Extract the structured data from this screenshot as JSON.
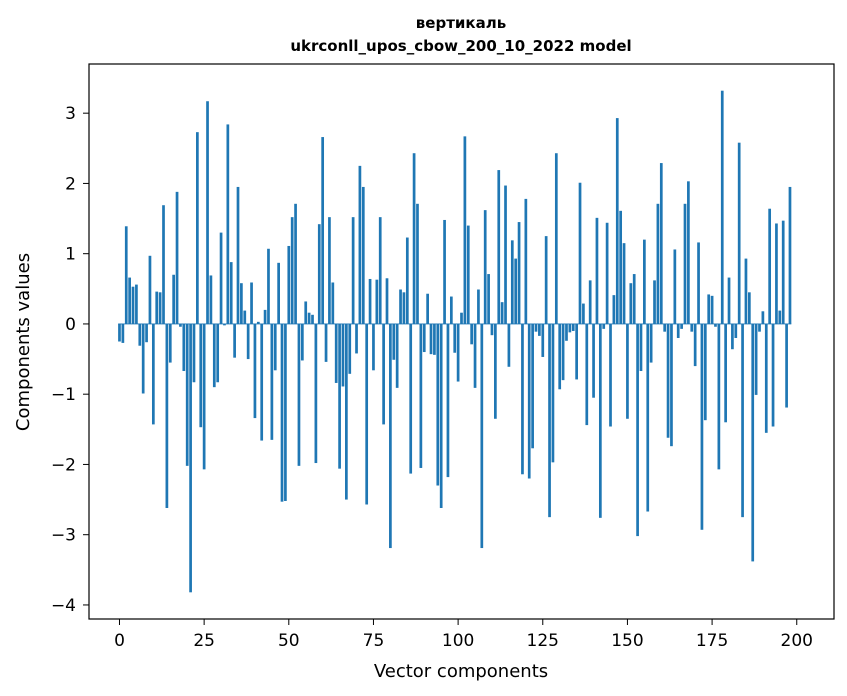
{
  "chart_data": {
    "type": "bar",
    "title_line1": "вертикаль",
    "title_line2": "ukrconll_upos_cbow_200_10_2022 model",
    "xlabel": "Vector components",
    "ylabel": "Components values",
    "xlim": [
      -9,
      211
    ],
    "ylim": [
      -4.2,
      3.7
    ],
    "xticks": [
      0,
      25,
      50,
      75,
      100,
      125,
      150,
      175,
      200
    ],
    "yticks": [
      -4,
      -3,
      -2,
      -1,
      0,
      1,
      2,
      3
    ],
    "ytick_labels": [
      "−4",
      "−3",
      "−2",
      "−1",
      "0",
      "1",
      "2",
      "3"
    ],
    "bar_color": "#1f77b4",
    "grid": false,
    "values": [
      -0.25,
      -0.27,
      1.39,
      0.66,
      0.53,
      0.56,
      -0.31,
      -0.99,
      -0.26,
      0.97,
      -1.43,
      0.46,
      0.45,
      1.69,
      -2.62,
      -0.55,
      0.7,
      1.88,
      -0.04,
      -0.67,
      -2.02,
      -3.82,
      -0.83,
      2.73,
      -1.47,
      -2.07,
      3.17,
      0.69,
      -0.9,
      -0.83,
      1.3,
      -0.02,
      2.84,
      0.88,
      -0.48,
      1.95,
      0.58,
      0.19,
      -0.5,
      0.59,
      -1.34,
      0.03,
      -1.66,
      0.2,
      1.07,
      -1.65,
      -0.66,
      0.87,
      -2.53,
      -2.52,
      1.11,
      1.52,
      1.71,
      -2.02,
      -0.52,
      0.32,
      0.16,
      0.13,
      -1.98,
      1.42,
      2.66,
      -0.54,
      1.52,
      0.59,
      -0.84,
      -2.06,
      -0.89,
      -2.5,
      -0.71,
      1.52,
      -0.42,
      2.25,
      1.95,
      -2.57,
      0.64,
      -0.66,
      0.63,
      1.52,
      -1.43,
      0.65,
      -3.19,
      -0.51,
      -0.91,
      0.49,
      0.45,
      1.23,
      -2.13,
      2.43,
      1.71,
      -2.05,
      -0.4,
      0.43,
      -0.43,
      -0.44,
      -2.3,
      -2.62,
      1.48,
      -2.18,
      0.39,
      -0.41,
      -0.82,
      0.16,
      2.67,
      1.4,
      -0.29,
      -0.91,
      0.49,
      -3.19,
      1.62,
      0.71,
      -0.16,
      -1.35,
      2.19,
      0.31,
      1.97,
      -0.61,
      1.19,
      0.93,
      1.45,
      -2.14,
      1.78,
      -2.2,
      -1.77,
      -0.11,
      -0.17,
      -0.47,
      1.25,
      -2.75,
      -1.97,
      2.43,
      -0.93,
      -0.8,
      -0.24,
      -0.12,
      -0.1,
      -0.79,
      2.01,
      0.29,
      -1.44,
      0.62,
      -1.05,
      1.51,
      -2.76,
      -0.07,
      1.44,
      -1.46,
      0.41,
      2.93,
      1.61,
      1.15,
      -1.35,
      0.58,
      0.71,
      -3.02,
      -0.67,
      1.2,
      -2.67,
      -0.55,
      0.62,
      1.71,
      2.29,
      -0.11,
      -1.62,
      -1.74,
      1.06,
      -0.2,
      -0.07,
      1.71,
      2.03,
      -0.11,
      -0.6,
      1.16,
      -2.93,
      -1.37,
      0.42,
      0.4,
      -0.04,
      -2.07,
      3.32,
      -1.4,
      0.66,
      -0.36,
      -0.2,
      2.58,
      -2.75,
      0.93,
      0.45,
      -3.38,
      -1.01,
      -0.11,
      0.18,
      -1.55,
      1.64,
      -1.46,
      1.43,
      0.19,
      1.47,
      -1.19,
      1.95
    ]
  }
}
